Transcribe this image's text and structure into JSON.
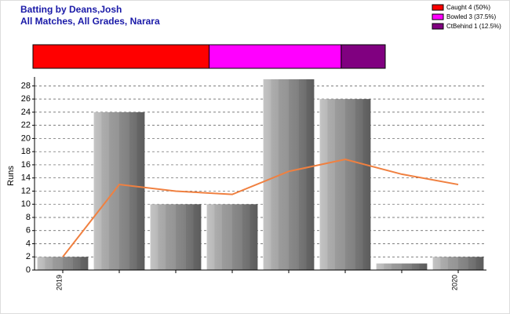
{
  "chart_data": [
    {
      "type": "bar",
      "title": "Batting by Deans,Josh",
      "subtitle": "All Matches, All Grades, Narara",
      "y_label": "Runs",
      "categories": [
        "2019",
        null,
        null,
        null,
        null,
        null,
        null,
        "2020"
      ],
      "series": [
        {
          "type": "bar",
          "color": "#8c8c8c",
          "values": [
            2,
            24,
            10,
            10,
            29,
            26,
            1,
            2
          ]
        },
        {
          "type": "line",
          "color": "#f08040",
          "values": [
            2,
            13,
            12,
            11.5,
            15,
            16.83,
            14.57,
            13
          ]
        }
      ],
      "ylim": [
        0,
        29
      ],
      "yticks": [
        0,
        2,
        4,
        6,
        8,
        10,
        12,
        14,
        16,
        18,
        20,
        22,
        24,
        26,
        28
      ],
      "grid": true
    },
    {
      "type": "stacked_bar",
      "series": [
        {
          "name": "Caught 4 (50%)",
          "color": "#ff0000",
          "values": [
            4
          ]
        },
        {
          "name": "Bowled 3 (37.5%)",
          "color": "#ff00ff",
          "values": [
            3
          ]
        },
        {
          "name": "CtBehind 1 (12.5%)",
          "color": "#800080",
          "values": [
            1
          ]
        }
      ]
    }
  ]
}
